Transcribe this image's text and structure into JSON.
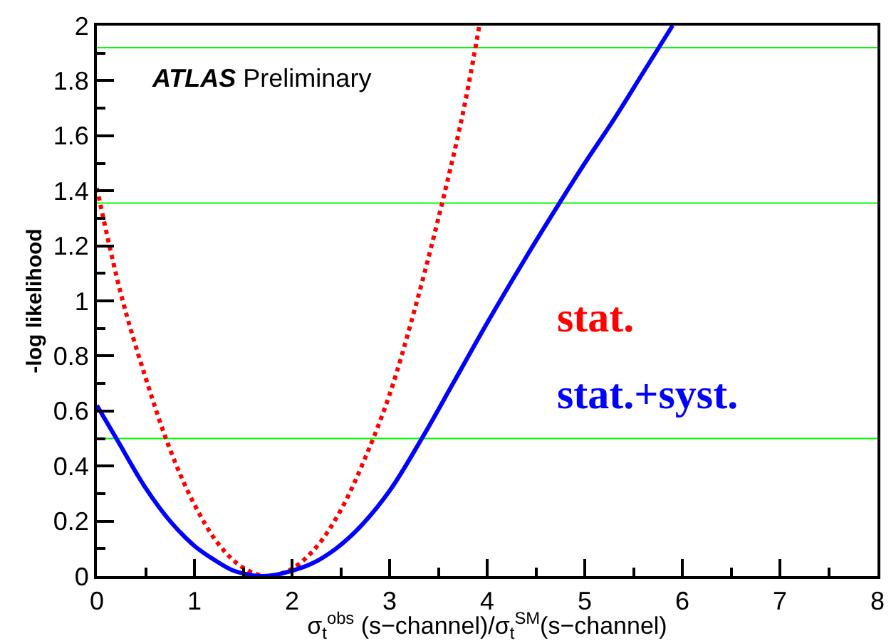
{
  "chart_data": {
    "type": "line",
    "ylabel": "-log likelihood",
    "xlabel": "σ$_{t}$$^{obs}$ (s−channel)/σ$_{t}$$^{SM}$(s−channel)",
    "annotations": [
      "ATLAS Preliminary"
    ],
    "series": [
      {
        "name": "stat.",
        "color": "#ff0000",
        "line_style": "dotted",
        "x": [
          0,
          0.25,
          0.5,
          0.75,
          1.0,
          1.25,
          1.5,
          1.75,
          2.0,
          2.25,
          2.5,
          2.75,
          3.0,
          3.25,
          3.5,
          3.75,
          3.92
        ],
        "values": [
          1.41,
          1.02,
          0.72,
          0.46,
          0.26,
          0.115,
          0.03,
          0,
          0.027,
          0.106,
          0.24,
          0.43,
          0.66,
          0.96,
          1.3,
          1.68,
          2.0
        ]
      },
      {
        "name": "stat.+syst.",
        "color": "#0000ff",
        "line_style": "solid",
        "x": [
          0,
          0.2,
          0.5,
          0.75,
          1.0,
          1.2,
          1.4,
          1.6,
          1.72,
          1.9,
          2.2,
          2.45,
          2.7,
          3.0,
          3.33,
          3.65,
          4.0,
          4.35,
          4.74,
          5.0,
          5.3,
          5.6,
          5.9
        ],
        "values": [
          0.62,
          0.5,
          0.32,
          0.2,
          0.11,
          0.06,
          0.02,
          0.003,
          0,
          0.01,
          0.045,
          0.1,
          0.18,
          0.31,
          0.5,
          0.7,
          0.92,
          1.13,
          1.355,
          1.5,
          1.66,
          1.83,
          2.0
        ]
      }
    ],
    "xlim": [
      0,
      8
    ],
    "xticks": [
      0,
      1,
      2,
      3,
      4,
      5,
      6,
      7,
      8
    ],
    "ylim": [
      0,
      2
    ],
    "yticks": [
      0,
      0.2,
      0.4,
      0.6,
      0.8,
      1,
      1.2,
      1.4,
      1.6,
      1.8,
      2
    ],
    "ref_lines": [
      {
        "axis": "y",
        "value": 0.5,
        "color": "#00ff00"
      },
      {
        "axis": "y",
        "value": 1.355,
        "color": "#00ff00"
      },
      {
        "axis": "y",
        "value": 1.92,
        "color": "#00ff00"
      }
    ],
    "grid": false,
    "legend": false
  }
}
